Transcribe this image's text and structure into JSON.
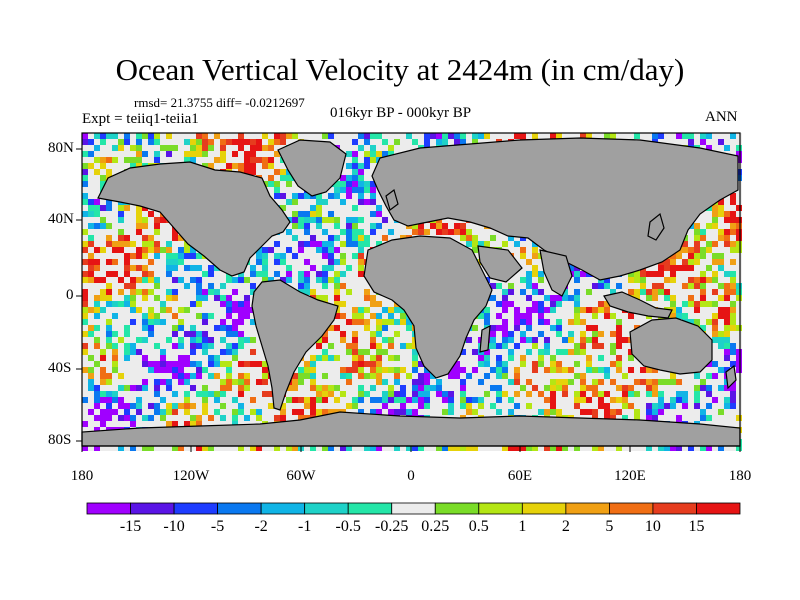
{
  "title": "Ocean Vertical Velocity at 2424m (in cm/day)",
  "stats": "rmsd= 21.3755 diff= -0.0212697",
  "experiment": "Expt = teiiq1-teiia1",
  "period": "016kyr BP - 000kyr BP",
  "season": "ANN",
  "lat_ticks": [
    "80N",
    "40N",
    "0",
    "40S",
    "80S"
  ],
  "lon_ticks": [
    "180",
    "120W",
    "60W",
    "0",
    "60E",
    "120E",
    "180"
  ],
  "colorbar": {
    "labels": [
      "-15",
      "-10",
      "-5",
      "-2",
      "-1",
      "-0.5",
      "-0.25",
      "0.25",
      "0.5",
      "1",
      "2",
      "5",
      "10",
      "15"
    ],
    "colors": [
      "#a000ff",
      "#5a14e6",
      "#1e3cff",
      "#0a78f0",
      "#10b4e6",
      "#1ed2c8",
      "#24e6a8",
      "#ececec",
      "#7adc28",
      "#b4e614",
      "#e6d20a",
      "#f0a014",
      "#f06e14",
      "#e63c1e",
      "#e61414"
    ]
  },
  "land_color": "#a0a0a0",
  "ocean_base_color": "#ececec"
}
